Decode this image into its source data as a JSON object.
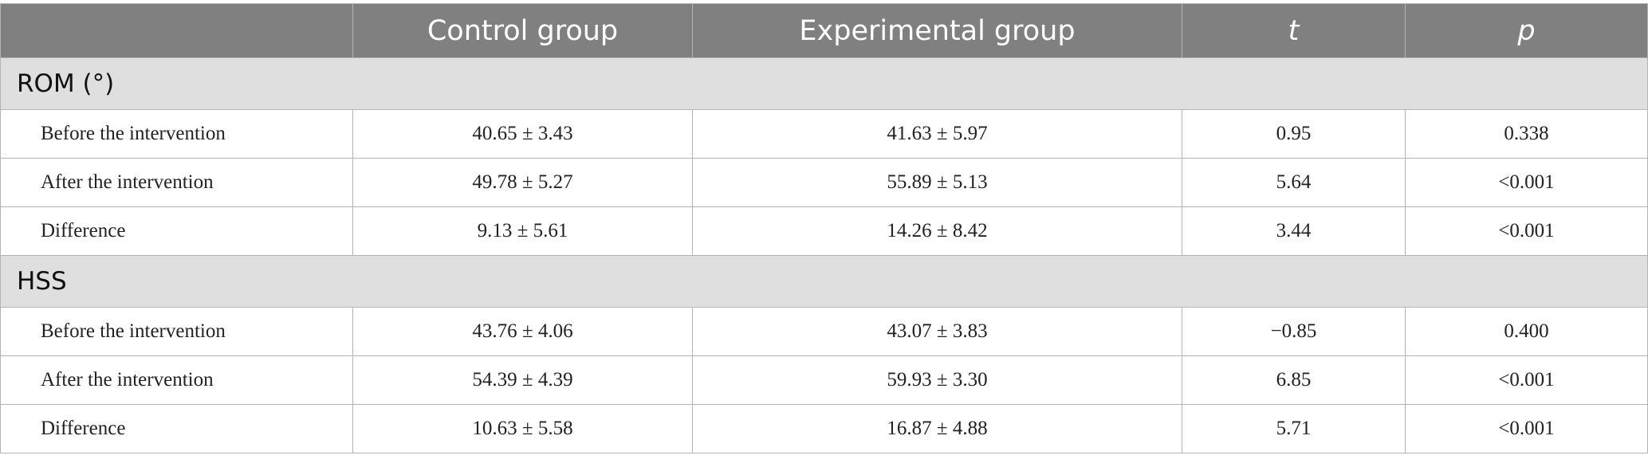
{
  "table": {
    "headers": [
      "",
      "Control group",
      "Experimental group",
      "t",
      "p"
    ],
    "sections": [
      {
        "title": "ROM (°)",
        "rows": [
          {
            "label": "Before the intervention",
            "control": "40.65 ± 3.43",
            "experimental": "41.63 ± 5.97",
            "t": "0.95",
            "p": "0.338"
          },
          {
            "label": "After the intervention",
            "control": "49.78 ± 5.27",
            "experimental": "55.89 ± 5.13",
            "t": "5.64",
            "p": "<0.001"
          },
          {
            "label": "Difference",
            "control": "9.13 ± 5.61",
            "experimental": "14.26 ± 8.42",
            "t": "3.44",
            "p": "<0.001"
          }
        ]
      },
      {
        "title": "HSS",
        "rows": [
          {
            "label": "Before the intervention",
            "control": "43.76 ± 4.06",
            "experimental": "43.07 ± 3.83",
            "t": "−0.85",
            "p": "0.400"
          },
          {
            "label": "After the intervention",
            "control": "54.39 ± 4.39",
            "experimental": "59.93 ± 3.30",
            "t": "6.85",
            "p": "<0.001"
          },
          {
            "label": "Difference",
            "control": "10.63 ± 5.58",
            "experimental": "16.87 ± 4.88",
            "t": "5.71",
            "p": "<0.001"
          }
        ]
      }
    ]
  },
  "colors": {
    "header_bg": "#808080",
    "section_bg": "#dfdfdf",
    "border": "#b4b4b4"
  }
}
